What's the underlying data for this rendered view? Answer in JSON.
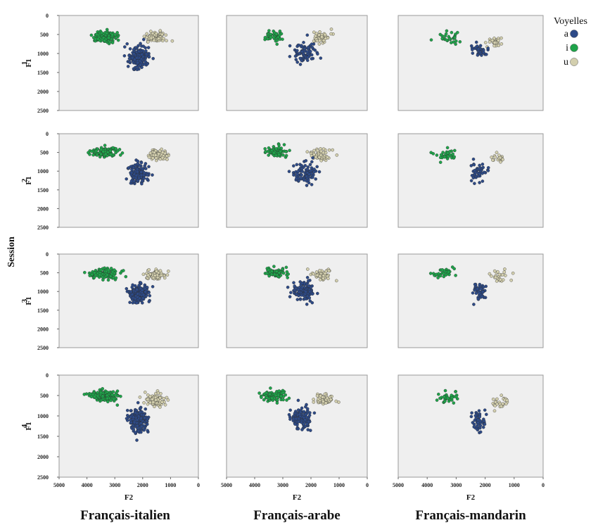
{
  "chart_data": {
    "type": "scatter",
    "figure_ylabel": "Session",
    "x_axis_label": "F2",
    "y_axis_label": "F1",
    "x_ticks": [
      5000,
      4000,
      3000,
      2000,
      1000,
      0
    ],
    "y_ticks": [
      0,
      500,
      1000,
      1500,
      2000,
      2500
    ],
    "xlim": [
      5000,
      0
    ],
    "ylim": [
      0,
      2500
    ],
    "legend": {
      "title": "Voyelles",
      "position": "top-right",
      "entries": [
        {
          "label": "a",
          "color": "#2d4a87"
        },
        {
          "label": "i",
          "color": "#1fa34a"
        },
        {
          "label": "u",
          "color": "#d3cfae"
        }
      ]
    },
    "columns": [
      "Français-italien",
      "Français-arabe",
      "Français-mandarin"
    ],
    "sessions": [
      "1",
      "2",
      "3",
      "4"
    ],
    "panels": [
      {
        "session": "1",
        "group": "Français-italien",
        "series": [
          {
            "vowel": "i",
            "n": 110,
            "f2_center": 3350,
            "f2_spread": 420,
            "f1_center": 560,
            "f1_spread": 120
          },
          {
            "vowel": "u",
            "n": 80,
            "f2_center": 1550,
            "f2_spread": 320,
            "f1_center": 580,
            "f1_spread": 130
          },
          {
            "vowel": "a",
            "n": 170,
            "f2_center": 2150,
            "f2_spread": 330,
            "f1_center": 1100,
            "f1_spread": 230
          }
        ]
      },
      {
        "session": "1",
        "group": "Français-arabe",
        "series": [
          {
            "vowel": "i",
            "n": 45,
            "f2_center": 3300,
            "f2_spread": 380,
            "f1_center": 520,
            "f1_spread": 120
          },
          {
            "vowel": "u",
            "n": 45,
            "f2_center": 1650,
            "f2_spread": 300,
            "f1_center": 560,
            "f1_spread": 130
          },
          {
            "vowel": "a",
            "n": 85,
            "f2_center": 2250,
            "f2_spread": 380,
            "f1_center": 1000,
            "f1_spread": 200
          }
        ]
      },
      {
        "session": "1",
        "group": "Français-mandarin",
        "series": [
          {
            "vowel": "i",
            "n": 30,
            "f2_center": 3200,
            "f2_spread": 380,
            "f1_center": 580,
            "f1_spread": 130
          },
          {
            "vowel": "u",
            "n": 25,
            "f2_center": 1600,
            "f2_spread": 300,
            "f1_center": 680,
            "f1_spread": 120
          },
          {
            "vowel": "a",
            "n": 40,
            "f2_center": 2200,
            "f2_spread": 260,
            "f1_center": 900,
            "f1_spread": 180
          }
        ]
      },
      {
        "session": "2",
        "group": "Français-italien",
        "series": [
          {
            "vowel": "i",
            "n": 120,
            "f2_center": 3400,
            "f2_spread": 420,
            "f1_center": 500,
            "f1_spread": 110
          },
          {
            "vowel": "u",
            "n": 80,
            "f2_center": 1400,
            "f2_spread": 300,
            "f1_center": 560,
            "f1_spread": 110
          },
          {
            "vowel": "a",
            "n": 160,
            "f2_center": 2150,
            "f2_spread": 300,
            "f1_center": 1050,
            "f1_spread": 220
          }
        ]
      },
      {
        "session": "2",
        "group": "Français-arabe",
        "series": [
          {
            "vowel": "i",
            "n": 65,
            "f2_center": 3250,
            "f2_spread": 400,
            "f1_center": 480,
            "f1_spread": 110
          },
          {
            "vowel": "u",
            "n": 55,
            "f2_center": 1700,
            "f2_spread": 300,
            "f1_center": 560,
            "f1_spread": 120
          },
          {
            "vowel": "a",
            "n": 95,
            "f2_center": 2200,
            "f2_spread": 380,
            "f1_center": 1050,
            "f1_spread": 230
          }
        ]
      },
      {
        "session": "2",
        "group": "Français-mandarin",
        "series": [
          {
            "vowel": "i",
            "n": 30,
            "f2_center": 3300,
            "f2_spread": 380,
            "f1_center": 560,
            "f1_spread": 130
          },
          {
            "vowel": "u",
            "n": 20,
            "f2_center": 1550,
            "f2_spread": 250,
            "f1_center": 680,
            "f1_spread": 120
          },
          {
            "vowel": "a",
            "n": 45,
            "f2_center": 2250,
            "f2_spread": 250,
            "f1_center": 980,
            "f1_spread": 200
          }
        ]
      },
      {
        "session": "3",
        "group": "Français-italien",
        "series": [
          {
            "vowel": "i",
            "n": 130,
            "f2_center": 3350,
            "f2_spread": 450,
            "f1_center": 520,
            "f1_spread": 110
          },
          {
            "vowel": "u",
            "n": 80,
            "f2_center": 1500,
            "f2_spread": 300,
            "f1_center": 560,
            "f1_spread": 110
          },
          {
            "vowel": "a",
            "n": 190,
            "f2_center": 2150,
            "f2_spread": 280,
            "f1_center": 1050,
            "f1_spread": 200
          }
        ]
      },
      {
        "session": "3",
        "group": "Français-arabe",
        "series": [
          {
            "vowel": "i",
            "n": 75,
            "f2_center": 3250,
            "f2_spread": 400,
            "f1_center": 500,
            "f1_spread": 110
          },
          {
            "vowel": "u",
            "n": 55,
            "f2_center": 1650,
            "f2_spread": 300,
            "f1_center": 560,
            "f1_spread": 120
          },
          {
            "vowel": "a",
            "n": 110,
            "f2_center": 2250,
            "f2_spread": 380,
            "f1_center": 1000,
            "f1_spread": 230
          }
        ]
      },
      {
        "session": "3",
        "group": "Français-mandarin",
        "series": [
          {
            "vowel": "i",
            "n": 30,
            "f2_center": 3400,
            "f2_spread": 330,
            "f1_center": 520,
            "f1_spread": 120
          },
          {
            "vowel": "u",
            "n": 25,
            "f2_center": 1500,
            "f2_spread": 300,
            "f1_center": 600,
            "f1_spread": 110
          },
          {
            "vowel": "a",
            "n": 45,
            "f2_center": 2200,
            "f2_spread": 220,
            "f1_center": 1000,
            "f1_spread": 210
          }
        ]
      },
      {
        "session": "4",
        "group": "Français-italien",
        "series": [
          {
            "vowel": "i",
            "n": 140,
            "f2_center": 3400,
            "f2_spread": 450,
            "f1_center": 500,
            "f1_spread": 110
          },
          {
            "vowel": "u",
            "n": 95,
            "f2_center": 1500,
            "f2_spread": 330,
            "f1_center": 620,
            "f1_spread": 130
          },
          {
            "vowel": "a",
            "n": 210,
            "f2_center": 2150,
            "f2_spread": 300,
            "f1_center": 1100,
            "f1_spread": 230
          }
        ]
      },
      {
        "session": "4",
        "group": "Français-arabe",
        "series": [
          {
            "vowel": "i",
            "n": 85,
            "f2_center": 3300,
            "f2_spread": 400,
            "f1_center": 520,
            "f1_spread": 110
          },
          {
            "vowel": "u",
            "n": 60,
            "f2_center": 1500,
            "f2_spread": 300,
            "f1_center": 600,
            "f1_spread": 120
          },
          {
            "vowel": "a",
            "n": 120,
            "f2_center": 2350,
            "f2_spread": 300,
            "f1_center": 1050,
            "f1_spread": 230
          }
        ]
      },
      {
        "session": "4",
        "group": "Français-mandarin",
        "series": [
          {
            "vowel": "i",
            "n": 35,
            "f2_center": 3300,
            "f2_spread": 380,
            "f1_center": 560,
            "f1_spread": 110
          },
          {
            "vowel": "u",
            "n": 25,
            "f2_center": 1550,
            "f2_spread": 280,
            "f1_center": 680,
            "f1_spread": 120
          },
          {
            "vowel": "a",
            "n": 50,
            "f2_center": 2250,
            "f2_spread": 260,
            "f1_center": 1080,
            "f1_spread": 210
          }
        ]
      }
    ]
  }
}
